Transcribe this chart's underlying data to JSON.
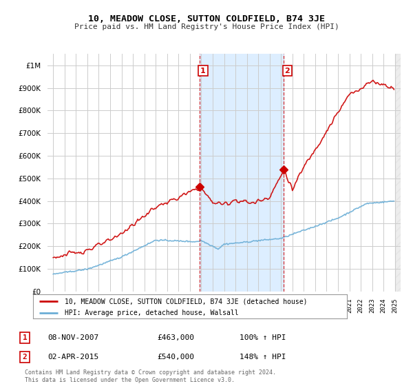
{
  "title": "10, MEADOW CLOSE, SUTTON COLDFIELD, B74 3JE",
  "subtitle": "Price paid vs. HM Land Registry's House Price Index (HPI)",
  "legend_line1": "10, MEADOW CLOSE, SUTTON COLDFIELD, B74 3JE (detached house)",
  "legend_line2": "HPI: Average price, detached house, Walsall",
  "transaction1_label": "1",
  "transaction1_date": "08-NOV-2007",
  "transaction1_price": "£463,000",
  "transaction1_hpi": "100% ↑ HPI",
  "transaction2_label": "2",
  "transaction2_date": "02-APR-2015",
  "transaction2_price": "£540,000",
  "transaction2_hpi": "148% ↑ HPI",
  "footnote": "Contains HM Land Registry data © Crown copyright and database right 2024.\nThis data is licensed under the Open Government Licence v3.0.",
  "hpi_color": "#6baed6",
  "price_color": "#cc0000",
  "marker1_x": 2007.85,
  "marker1_y": 463000,
  "marker2_x": 2015.25,
  "marker2_y": 540000,
  "vline1_x": 2007.85,
  "vline2_x": 2015.25,
  "shade_xmin": 2007.85,
  "shade_xmax": 2015.25,
  "ylim": [
    0,
    1050000
  ],
  "xlim": [
    1994.5,
    2025.5
  ],
  "yticks": [
    0,
    100000,
    200000,
    300000,
    400000,
    500000,
    600000,
    700000,
    800000,
    900000,
    1000000
  ],
  "background_color": "#ffffff",
  "plot_bg_color": "#ffffff",
  "grid_color": "#cccccc",
  "shade_color": "#ddeeff"
}
